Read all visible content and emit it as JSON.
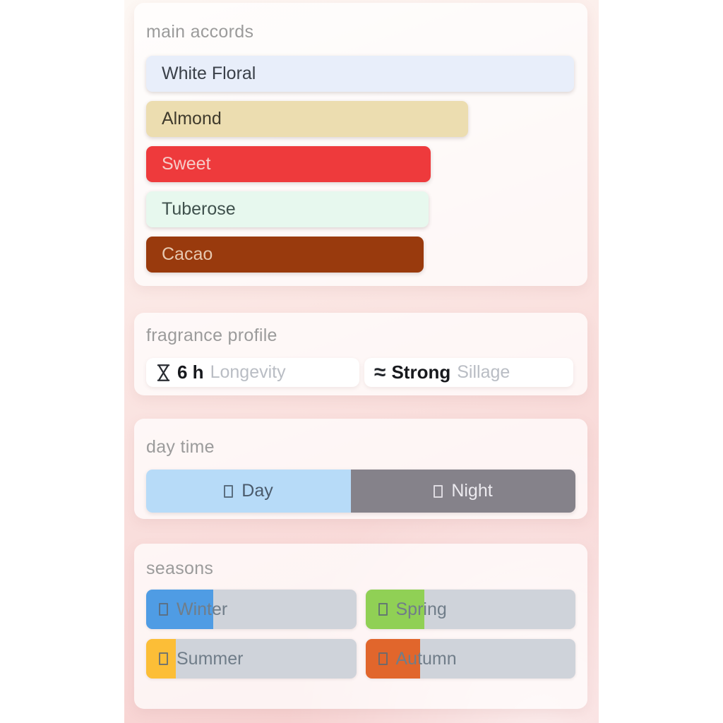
{
  "accords": {
    "title": "main accords",
    "items": [
      {
        "label": "White Floral",
        "width_pct": 99.7,
        "bg": "#e8eefa",
        "text_color": "#3a4049"
      },
      {
        "label": "Almond",
        "width_pct": 75.0,
        "bg": "#ecddb0",
        "text_color": "#3f3a2c"
      },
      {
        "label": "Sweet",
        "width_pct": 66.3,
        "bg": "#ee3a3c",
        "text_color": "#f6cdc9"
      },
      {
        "label": "Tuberose",
        "width_pct": 65.8,
        "bg": "#e7f8ee",
        "text_color": "#3f514d"
      },
      {
        "label": "Cacao",
        "width_pct": 64.6,
        "bg": "#993a0d",
        "text_color": "#e7c8b0"
      }
    ]
  },
  "profile": {
    "title": "fragrance profile",
    "longevity": {
      "icon": "hourglass-icon",
      "value": "6 h",
      "label": "Longevity"
    },
    "sillage": {
      "icon": "waves-icon",
      "value": "Strong",
      "label": "Sillage"
    }
  },
  "daytime": {
    "title": "day time",
    "segments": [
      {
        "label": "Day",
        "pct": 47.7,
        "bg": "#b7dbf8",
        "text_color": "#4a5a6b",
        "icon": "day-icon"
      },
      {
        "label": "Night",
        "pct": 52.3,
        "bg": "#85828a",
        "text_color": "#eceaef",
        "icon": "night-icon"
      }
    ]
  },
  "seasons": {
    "title": "seasons",
    "track_color": "#cfd3da",
    "items": [
      {
        "label": "Winter",
        "pct": 32,
        "color": "#4f9ce4",
        "icon": "winter-icon"
      },
      {
        "label": "Spring",
        "pct": 28,
        "color": "#90d055",
        "icon": "spring-icon"
      },
      {
        "label": "Summer",
        "pct": 14,
        "color": "#fcbe37",
        "icon": "summer-icon"
      },
      {
        "label": "Autumn",
        "pct": 26,
        "color": "#e1662c",
        "icon": "autumn-icon"
      }
    ]
  }
}
